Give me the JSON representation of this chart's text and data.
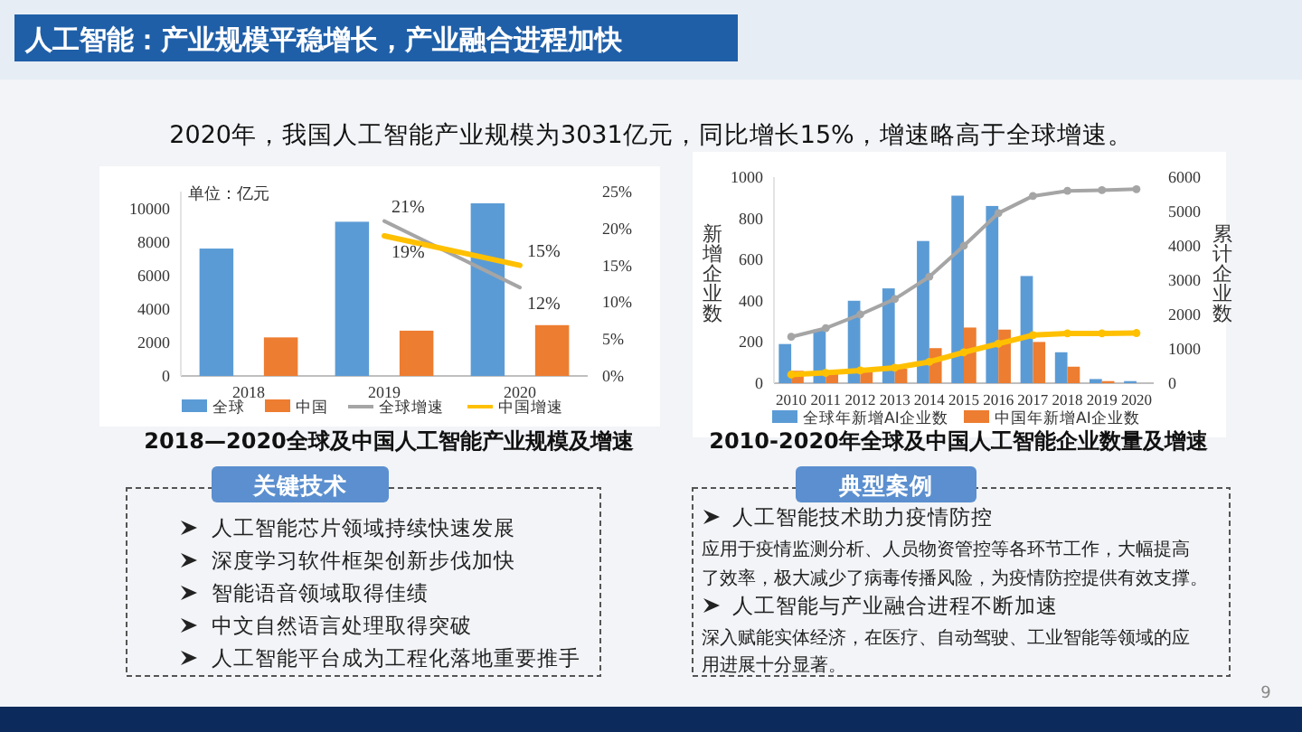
{
  "chart_data": [
    {
      "type": "bar",
      "title": "2018—2020全球及中国人工智能产业规模及增速",
      "categories": [
        "2018",
        "2019",
        "2020"
      ],
      "series": [
        {
          "name": "全球",
          "color": "#5b9bd5",
          "values": [
            7600,
            9200,
            10300
          ]
        },
        {
          "name": "中国",
          "color": "#ed7d31",
          "values": [
            2300,
            2700,
            3031
          ]
        },
        {
          "name": "全球增速",
          "type": "line",
          "axis": "y2",
          "color": "#a5a5a5",
          "values": [
            null,
            21,
            12
          ],
          "value_labels": [
            null,
            "21%",
            "12%"
          ]
        },
        {
          "name": "中国增速",
          "type": "line",
          "axis": "y2",
          "color": "#ffc000",
          "values": [
            null,
            19,
            15
          ],
          "value_labels": [
            null,
            "19%",
            "15%"
          ]
        }
      ],
      "ylim": [
        0,
        11000
      ],
      "yticks": [
        0,
        2000,
        4000,
        6000,
        8000,
        10000
      ],
      "y2lim": [
        0,
        25
      ],
      "y2ticks": [
        {
          "value": 0,
          "label": "0%"
        },
        {
          "value": 5,
          "label": "5%"
        },
        {
          "value": 10,
          "label": "10%"
        },
        {
          "value": 15,
          "label": "15%"
        },
        {
          "value": 20,
          "label": "20%"
        },
        {
          "value": 25,
          "label": "25%"
        }
      ],
      "annotations": [
        "单位：亿元"
      ],
      "legend": "bottom",
      "grid": false,
      "marker": "none"
    },
    {
      "type": "bar",
      "title": "2010-2020年全球及中国人工智能企业数量及增速",
      "categories": [
        "2010",
        "2011",
        "2012",
        "2013",
        "2014",
        "2015",
        "2016",
        "2017",
        "2018",
        "2019",
        "2020"
      ],
      "series": [
        {
          "name": "全球年新增AI企业数",
          "color": "#5b9bd5",
          "values": [
            190,
            260,
            400,
            460,
            690,
            910,
            860,
            520,
            150,
            20,
            10
          ]
        },
        {
          "name": "中国年新增AI企业数",
          "color": "#ed7d31",
          "values": [
            60,
            60,
            60,
            70,
            170,
            270,
            260,
            200,
            80,
            10,
            0
          ]
        },
        {
          "type": "line",
          "axis": "y2",
          "color": "#a5a5a5",
          "values": [
            1350,
            1600,
            2000,
            2450,
            3100,
            4000,
            4950,
            5450,
            5600,
            5620,
            5650
          ]
        },
        {
          "type": "line",
          "axis": "y2",
          "color": "#ffc000",
          "values": [
            250,
            300,
            370,
            450,
            620,
            900,
            1150,
            1400,
            1450,
            1450,
            1460
          ]
        }
      ],
      "ylabel": "新增企业数",
      "y2label": "累计企业数",
      "ylim": [
        0,
        1000
      ],
      "yticks": [
        0,
        200,
        400,
        600,
        800,
        1000
      ],
      "y2lim": [
        0,
        6000
      ],
      "y2ticks": [
        0,
        1000,
        2000,
        3000,
        4000,
        5000,
        6000
      ],
      "legend": "bottom",
      "grid": false,
      "marker": "circle"
    },
    {
      "type": "other",
      "title": "人工智能：产业规模平稳增长，产业融合进程加快",
      "subtitle": "2020年，我国人工智能产业规模为3031亿元，同比增长15%，增速略高于全球增速。",
      "annotations": [
        "关键技术",
        "人工智能芯片领域持续快速发展",
        "深度学习软件框架创新步伐加快",
        "智能语音领域取得佳绩",
        "中文自然语言处理取得突破",
        "人工智能平台成为工程化落地重要推手",
        "典型案例",
        "人工智能技术助力疫情防控",
        "应用于疫情监测分析、人员物资管控等各环节工作，大幅提高",
        "了效率，极大减少了病毒传播风险，为疫情防控提供有效支撑。",
        "人工智能与产业融合进程不断加速",
        "深入赋能实体经济，在医疗、自动驾驶、工业智能等领域的应",
        "用进展十分显著。",
        "9"
      ]
    }
  ]
}
